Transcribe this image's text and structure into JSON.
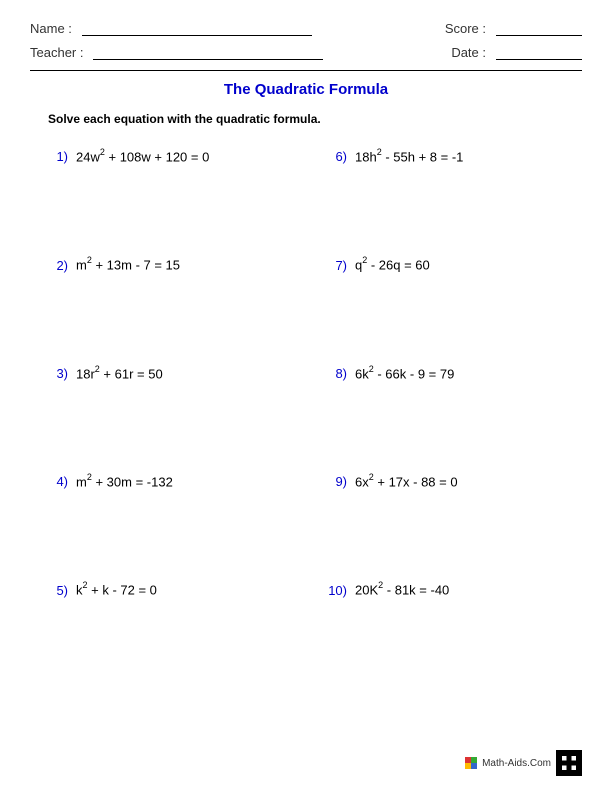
{
  "header": {
    "name_label": "Name :",
    "teacher_label": "Teacher :",
    "score_label": "Score :",
    "date_label": "Date :"
  },
  "title": "The Quadratic Formula",
  "instructions": "Solve each equation with the quadratic formula.",
  "problems": [
    {
      "num": "1)",
      "coef1": "24w",
      "rest": " + 108w + 120 = 0"
    },
    {
      "num": "2)",
      "coef1": "m",
      "rest": " + 13m - 7 = 15"
    },
    {
      "num": "3)",
      "coef1": "18r",
      "rest": " + 61r = 50"
    },
    {
      "num": "4)",
      "coef1": "m",
      "rest": " + 30m = -132"
    },
    {
      "num": "5)",
      "coef1": "k",
      "rest": " + k - 72 = 0"
    },
    {
      "num": "6)",
      "coef1": "18h",
      "rest": " - 55h + 8 = -1"
    },
    {
      "num": "7)",
      "coef1": "q",
      "rest": " - 26q = 60"
    },
    {
      "num": "8)",
      "coef1": "6k",
      "rest": " - 66k - 9 = 79"
    },
    {
      "num": "9)",
      "coef1": "6x",
      "rest": " + 17x - 88 = 0"
    },
    {
      "num": "10)",
      "coef1": "20K",
      "rest": " - 81k = -40"
    }
  ],
  "footer": {
    "site": "Math-Aids.Com"
  },
  "colors": {
    "number_color": "#0000cc",
    "title_color": "#0000cc",
    "text_color": "#000000",
    "background": "#ffffff"
  }
}
